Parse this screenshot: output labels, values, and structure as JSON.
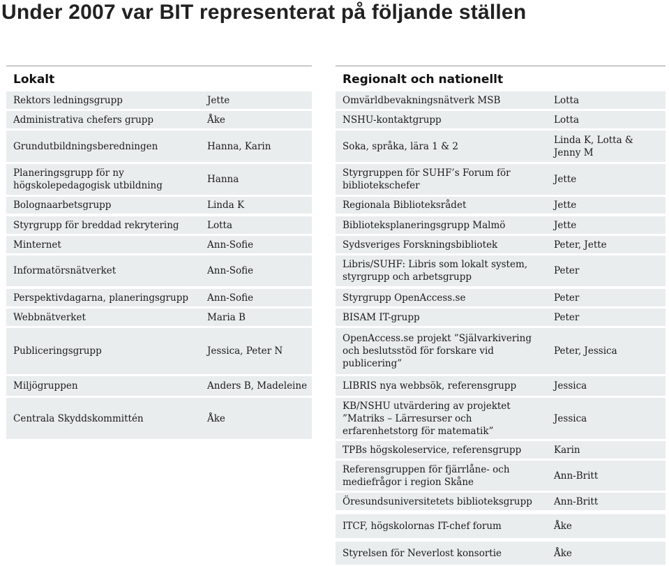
{
  "title": "Under 2007 var BIT representerat på följande ställen",
  "left_table": {
    "heading": "Lokalt",
    "rows": [
      {
        "name": "Rektors ledningsgrupp",
        "person": "Jette"
      },
      {
        "name": "Administrativa chefers grupp",
        "person": "Åke"
      },
      {
        "name": "Grundutbildningsberedningen",
        "person": "Hanna, Karin"
      },
      {
        "name": "Planeringsgrupp för ny\nhögskolepedagogisk utbildning",
        "person": "Hanna"
      },
      {
        "name": "Bolognaarbetsgrupp",
        "person": "Linda K"
      },
      {
        "name": "Styrgrupp för breddad rekrytering",
        "person": "Lotta"
      },
      {
        "name": "Minternet",
        "person": "Ann-Sofie"
      },
      {
        "name": "Informatörsnätverket",
        "person": "Ann-Sofie"
      },
      {
        "name": "Perspektivdagarna, planeringsgrupp",
        "person": "Ann-Sofie"
      },
      {
        "name": "Webbnätverket",
        "person": "Maria B"
      },
      {
        "name": "Publiceringsgrupp",
        "person": "Jessica, Peter N"
      },
      {
        "name": "Miljögruppen",
        "person": "Anders B, Madeleine"
      },
      {
        "name": "Centrala Skyddskommittén",
        "person": "Åke"
      }
    ]
  },
  "right_table": {
    "heading": "Regionalt och nationellt",
    "rows": [
      {
        "name": "Omvärldbevakningsnätverk MSB",
        "person": "Lotta"
      },
      {
        "name": "NSHU-kontaktgrupp",
        "person": "Lotta"
      },
      {
        "name": "Soka, språka, lära 1 & 2",
        "person": "Linda K, Lotta &\nJenny M"
      },
      {
        "name": "Styrgruppen för SUHF’s Forum för\nbibliotekschefer",
        "person": "Jette"
      },
      {
        "name": "Regionala Biblioteksrådet",
        "person": "Jette"
      },
      {
        "name": "Biblioteksplaneringsgrupp Malmö",
        "person": "Jette"
      },
      {
        "name": "Sydsveriges Forskningsbibliotek",
        "person": "Peter, Jette"
      },
      {
        "name": "Libris/SUHF: Libris som lokalt system,\nstyrgrupp och arbetsgrupp",
        "person": "Peter"
      },
      {
        "name": "Styrgrupp OpenAccess.se",
        "person": "Peter"
      },
      {
        "name": "BISAM IT-grupp",
        "person": "Peter"
      },
      {
        "name": "OpenAccess.se projekt ”Självarkivering\noch beslutsstöd för forskare vid\npublicering”",
        "person": "Peter, Jessica"
      },
      {
        "name": "LIBRIS nya webbsök, referensgrupp",
        "person": "Jessica"
      },
      {
        "name": "KB/NSHU utvärdering av projektet\n”Matriks – Lärresurser och\nerfarenhetstorg för matematik”",
        "person": "Jessica"
      },
      {
        "name": "TPBs högskoleservice, referensgrupp",
        "person": "Karin"
      },
      {
        "name": "Referensgruppen för fjärrlåne- och\nmediefrågor i region Skåne",
        "person": "Ann-Britt"
      },
      {
        "name": "Öresundsuniversitetets biblioteksgrupp",
        "person": "Ann-Britt"
      },
      {
        "name": "ITCF, högskolornas IT-chef forum",
        "person": "Åke"
      },
      {
        "name": "Styrelsen för Neverlost konsortie",
        "person": "Åke"
      }
    ]
  }
}
